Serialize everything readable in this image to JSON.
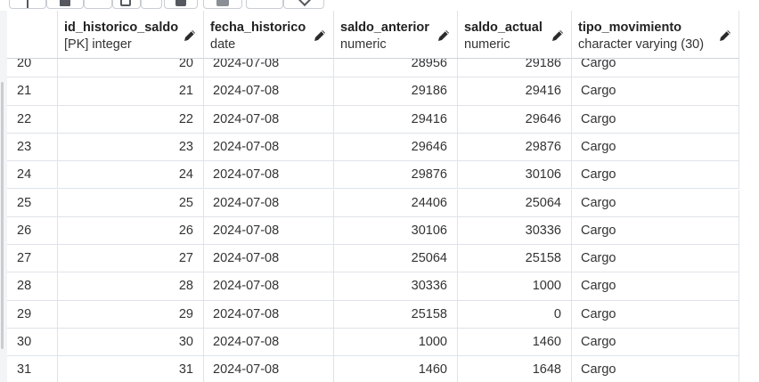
{
  "columns": [
    {
      "name": "",
      "type": ""
    },
    {
      "name": "id_historico_saldo",
      "type": "[PK] integer"
    },
    {
      "name": "fecha_historico",
      "type": "date"
    },
    {
      "name": "saldo_anterior",
      "type": "numeric"
    },
    {
      "name": "saldo_actual",
      "type": "numeric"
    },
    {
      "name": "tipo_movimiento",
      "type": "character varying (30)"
    }
  ],
  "rows": [
    {
      "n": "20",
      "id": "20",
      "fecha": "2024-07-08",
      "anterior": "28956",
      "actual": "29186",
      "tipo": "Cargo"
    },
    {
      "n": "21",
      "id": "21",
      "fecha": "2024-07-08",
      "anterior": "29186",
      "actual": "29416",
      "tipo": "Cargo"
    },
    {
      "n": "22",
      "id": "22",
      "fecha": "2024-07-08",
      "anterior": "29416",
      "actual": "29646",
      "tipo": "Cargo"
    },
    {
      "n": "23",
      "id": "23",
      "fecha": "2024-07-08",
      "anterior": "29646",
      "actual": "29876",
      "tipo": "Cargo"
    },
    {
      "n": "24",
      "id": "24",
      "fecha": "2024-07-08",
      "anterior": "29876",
      "actual": "30106",
      "tipo": "Cargo"
    },
    {
      "n": "25",
      "id": "25",
      "fecha": "2024-07-08",
      "anterior": "24406",
      "actual": "25064",
      "tipo": "Cargo"
    },
    {
      "n": "26",
      "id": "26",
      "fecha": "2024-07-08",
      "anterior": "30106",
      "actual": "30336",
      "tipo": "Cargo"
    },
    {
      "n": "27",
      "id": "27",
      "fecha": "2024-07-08",
      "anterior": "25064",
      "actual": "25158",
      "tipo": "Cargo"
    },
    {
      "n": "28",
      "id": "28",
      "fecha": "2024-07-08",
      "anterior": "30336",
      "actual": "1000",
      "tipo": "Cargo"
    },
    {
      "n": "29",
      "id": "29",
      "fecha": "2024-07-08",
      "anterior": "25158",
      "actual": "0",
      "tipo": "Cargo"
    },
    {
      "n": "30",
      "id": "30",
      "fecha": "2024-07-08",
      "anterior": "1000",
      "actual": "1460",
      "tipo": "Cargo"
    },
    {
      "n": "31",
      "id": "31",
      "fecha": "2024-07-08",
      "anterior": "1460",
      "actual": "1648",
      "tipo": "Cargo"
    }
  ],
  "icons": {
    "edit": "pencil-icon"
  },
  "colors": {
    "grid_line": "#dfe3e8",
    "header_text": "#222222"
  }
}
